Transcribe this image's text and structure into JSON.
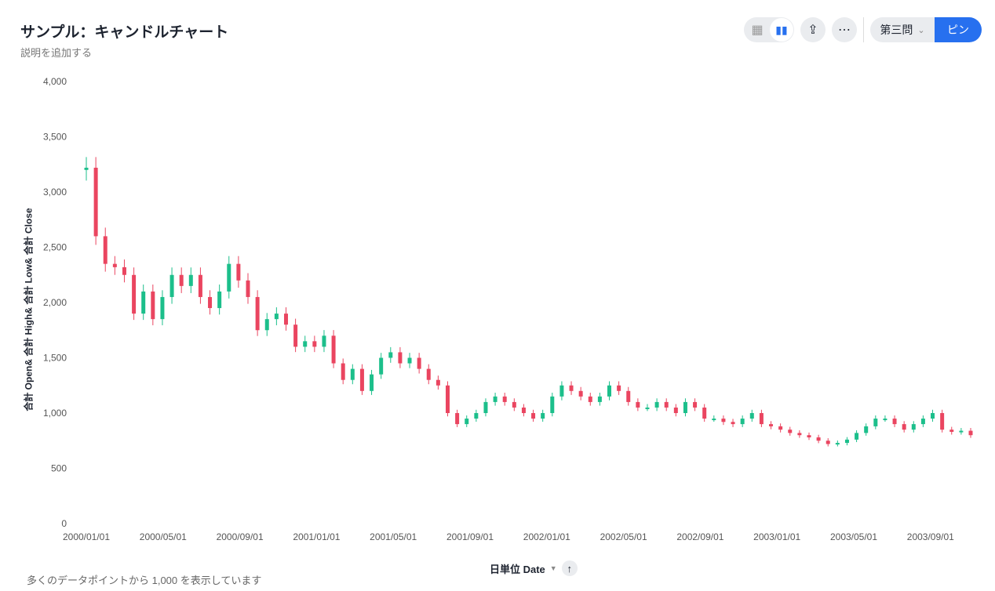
{
  "header": {
    "title": "サンプル：キャンドルチャート",
    "description": "説明を追加する",
    "selector": "第三問",
    "pin": "ピン"
  },
  "toolbar": {
    "icons": [
      "table-icon",
      "chart-icon",
      "share-icon",
      "more-icon"
    ]
  },
  "footer": {
    "note": "多くのデータポイントから 1,000 を表示しています",
    "x_title": "日単位 Date"
  },
  "colors": {
    "up": "#1cbf8b",
    "down": "#ea4560",
    "accent": "#2770ef"
  },
  "chart_data": {
    "type": "candlestick",
    "ylabel": "合計 Open& 合計 High& 合計 Low& 合計 Close",
    "xlabel": "日単位 Date",
    "ylim": [
      0,
      4000
    ],
    "yticks": [
      0,
      500,
      1000,
      1500,
      2000,
      2500,
      3000,
      3500,
      4000
    ],
    "ytick_labels": [
      "0",
      "500",
      "1,000",
      "1,500",
      "2,000",
      "2,500",
      "3,000",
      "3,500",
      "4,000"
    ],
    "xtick_labels": [
      "2000/01/01",
      "2000/05/01",
      "2000/09/01",
      "2001/01/01",
      "2001/05/01",
      "2001/09/01",
      "2002/01/01",
      "2002/05/01",
      "2002/09/01",
      "2003/01/01",
      "2003/05/01",
      "2003/09/01"
    ],
    "start_open": 3200,
    "closes": [
      3220,
      2600,
      2350,
      2320,
      2250,
      1900,
      2100,
      1850,
      2050,
      2250,
      2150,
      2250,
      2050,
      1950,
      2100,
      2350,
      2200,
      2050,
      1750,
      1850,
      1900,
      1800,
      1600,
      1650,
      1600,
      1700,
      1450,
      1300,
      1400,
      1200,
      1350,
      1500,
      1550,
      1450,
      1500,
      1400,
      1300,
      1250,
      1000,
      900,
      950,
      1000,
      1100,
      1150,
      1100,
      1050,
      1000,
      950,
      1000,
      1150,
      1250,
      1200,
      1150,
      1100,
      1150,
      1250,
      1200,
      1100,
      1050,
      1050,
      1100,
      1050,
      1000,
      1100,
      1050,
      950,
      950,
      920,
      900,
      950,
      1000,
      900,
      880,
      850,
      820,
      800,
      780,
      750,
      720,
      730,
      760,
      820,
      880,
      950,
      950,
      900,
      850,
      900,
      950,
      1000,
      850,
      830,
      840,
      800
    ]
  }
}
